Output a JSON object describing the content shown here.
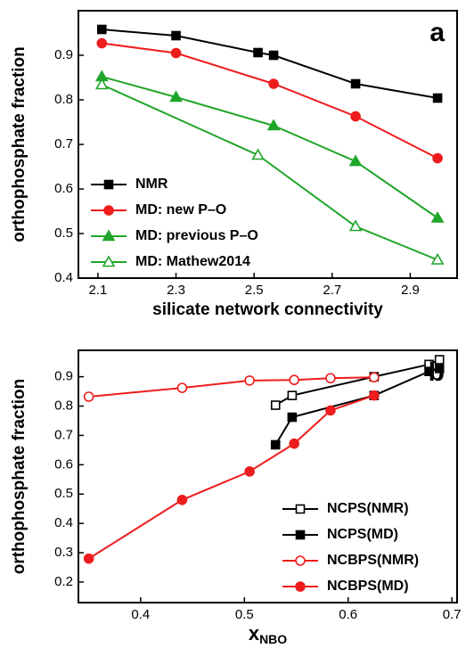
{
  "chart_data": [
    {
      "type": "line",
      "panel_label": "a",
      "xlabel": "silicate network connectivity",
      "ylabel": "orthophosphate fraction",
      "xlim": [
        2.05,
        3.02
      ],
      "xticks": [
        2.1,
        2.3,
        2.5,
        2.7,
        2.9
      ],
      "ylim": [
        0.4,
        1.0
      ],
      "yticks": [
        0.4,
        0.5,
        0.6,
        0.7,
        0.8,
        0.9
      ],
      "legend": "lower left",
      "series": [
        {
          "name": "NMR",
          "color": "#000000",
          "marker": "square",
          "filled": true,
          "x": [
            2.11,
            2.3,
            2.51,
            2.55,
            2.76,
            2.97
          ],
          "values": [
            0.958,
            0.944,
            0.906,
            0.9,
            0.836,
            0.804
          ]
        },
        {
          "name": "MD: new P–O",
          "color": "#ee1c1c",
          "marker": "circle",
          "filled": true,
          "x": [
            2.11,
            2.3,
            2.55,
            2.76,
            2.97
          ],
          "values": [
            0.927,
            0.905,
            0.836,
            0.763,
            0.669
          ]
        },
        {
          "name": "MD: previous P–O",
          "color": "#1fa62a",
          "marker": "triangle",
          "filled": true,
          "x": [
            2.11,
            2.3,
            2.55,
            2.76,
            2.97
          ],
          "values": [
            0.852,
            0.806,
            0.742,
            0.662,
            0.535
          ]
        },
        {
          "name": "MD: Mathew2014",
          "color": "#1fa62a",
          "marker": "triangle",
          "filled": false,
          "x": [
            2.11,
            2.51,
            2.76,
            2.97
          ],
          "values": [
            0.834,
            0.676,
            0.516,
            0.441
          ]
        }
      ]
    },
    {
      "type": "line",
      "panel_label": "b",
      "xlabel": "x",
      "xlabel_sub": "NBO",
      "ylabel": "orthophosphate fraction",
      "xlim": [
        0.34,
        0.705
      ],
      "xticks": [
        0.4,
        0.5,
        0.6,
        0.7
      ],
      "ylim": [
        0.13,
        0.99
      ],
      "yticks": [
        0.2,
        0.3,
        0.4,
        0.5,
        0.6,
        0.7,
        0.8,
        0.9
      ],
      "legend": "lower right",
      "series": [
        {
          "name": "NCPS(NMR)",
          "color": "#000000",
          "marker": "square",
          "filled": false,
          "x": [
            0.53,
            0.546,
            0.625,
            0.678,
            0.688
          ],
          "values": [
            0.803,
            0.836,
            0.9,
            0.942,
            0.958
          ]
        },
        {
          "name": "NCPS(MD)",
          "color": "#000000",
          "marker": "square",
          "filled": true,
          "x": [
            0.53,
            0.546,
            0.625,
            0.678,
            0.688
          ],
          "values": [
            0.668,
            0.762,
            0.836,
            0.918,
            0.928
          ]
        },
        {
          "name": "NCBPS(NMR)",
          "color": "#ee1c1c",
          "marker": "circle",
          "filled": false,
          "x": [
            0.35,
            0.44,
            0.505,
            0.548,
            0.583,
            0.625
          ],
          "values": [
            0.832,
            0.862,
            0.887,
            0.889,
            0.895,
            0.898
          ]
        },
        {
          "name": "NCBPS(MD)",
          "color": "#ee1c1c",
          "marker": "circle",
          "filled": true,
          "x": [
            0.35,
            0.44,
            0.505,
            0.548,
            0.583,
            0.625
          ],
          "values": [
            0.28,
            0.48,
            0.577,
            0.672,
            0.785,
            0.836
          ]
        }
      ]
    }
  ]
}
